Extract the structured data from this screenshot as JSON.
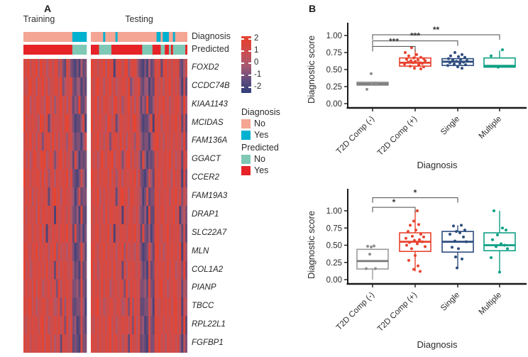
{
  "chart_data": [
    {
      "type": "heatmap",
      "panel_label": "A",
      "group_labels": [
        "Training",
        "Testing"
      ],
      "annotation_labels": [
        "Diagnosis",
        "Predicted"
      ],
      "genes": [
        "FOXD2",
        "CCDC74B",
        "KIAA1143",
        "MCIDAS",
        "FAM136A",
        "GGACT",
        "CCER2",
        "FAM19A3",
        "DRAP1",
        "SLC22A7",
        "MLN",
        "COL1A2",
        "PIANP",
        "TBCC",
        "RPL22L1",
        "FGFBP1"
      ],
      "colorbar": {
        "ticks": [
          "2",
          "1",
          "0",
          "-1",
          "-2"
        ],
        "high": "#e8432e",
        "mid": "#a85a72",
        "low": "#2e3d7a",
        "range": [
          2,
          -2
        ]
      },
      "ann_colors": {
        "diagnosis_no": "#f4a593",
        "diagnosis_yes": "#00b2cf",
        "predicted_no": "#7fc8b6",
        "predicted_yes": "#e62428"
      },
      "legend": {
        "diagnosis_title": "Diagnosis",
        "diagnosis_items": [
          {
            "label": "No",
            "key": "diagnosis_no"
          },
          {
            "label": "Yes",
            "key": "diagnosis_yes"
          }
        ],
        "predicted_title": "Predicted",
        "predicted_items": [
          {
            "label": "No",
            "key": "predicted_no"
          },
          {
            "label": "Yes",
            "key": "predicted_yes"
          }
        ]
      },
      "training": {
        "n_samples": 31,
        "diagnosis": [
          [
            "no",
            24
          ],
          [
            "yes",
            7
          ]
        ],
        "predicted": [
          [
            "yes",
            24
          ],
          [
            "no",
            7
          ]
        ],
        "rows": [
          "8796879597857868847328632131523",
          "7689785879685778869357783244132",
          "8795868877598684779685862439224",
          "9687877598682587778689763122481",
          "7879685873788696858774874233147",
          "8685797688957873689686752841323",
          "9786878869684785877879583213742",
          "7879586877872689785887764137233",
          "8687785968878771867876853241822",
          "7788687795817687868879672832413",
          "8876879687785879486775863123842",
          "9685787878696772858787684231723",
          "7878696885778687395878773342832",
          "8789685778867875683948772233741",
          "7687878689685778786839583412732",
          "8786877879688685772877682321833"
        ]
      },
      "testing": {
        "n_samples": 47,
        "diagnosis": [
          [
            "no",
            6
          ],
          [
            "yes",
            1
          ],
          [
            "no",
            5
          ],
          [
            "yes",
            1
          ],
          [
            "no",
            19
          ],
          [
            "yes",
            2
          ],
          [
            "no",
            1
          ],
          [
            "yes",
            3
          ],
          [
            "no",
            2
          ],
          [
            "yes",
            1
          ],
          [
            "no",
            6
          ]
        ],
        "predicted": [
          [
            "yes",
            4
          ],
          [
            "no",
            6
          ],
          [
            "yes",
            15
          ],
          [
            "no",
            5
          ],
          [
            "yes",
            4
          ],
          [
            "no",
            2
          ],
          [
            "yes",
            2
          ],
          [
            "no",
            1
          ],
          [
            "yes",
            1
          ],
          [
            "no",
            6
          ],
          [
            "yes",
            1
          ]
        ],
        "rows": [
          "97868795978178868947886321315238782796868783257",
          "86897858796857788693577832441328768587968684172",
          "87958688775986847796858624392248687968577886395",
          "96878775986825877786897631224818785878687968272",
          "78796858737886968587748742331478968587786877493",
          "86857976889578736896867528413238687787968577286",
          "97868788696847858778795832137428786887759686183",
          "78795868778726897858877641372338868778587968375",
          "86877859688787718678768532418228778868779581463",
          "77886877958176878688796728324138876879687785272",
          "88768796877858794867758631238428968578787869184",
          "96857878786967728587876842317238787869688577393",
          "78786968857786873958787733428328789685778867264",
          "87896857788678756839487722337418768787868968175",
          "76878786896857787868395834127328878687787968292",
          "87868778796886857728776823218338796858778684163"
        ]
      }
    },
    {
      "type": "box",
      "panel_label": "B",
      "ylabel": "Diagnostic score",
      "xlabel": "Diagnosis",
      "yticks": [
        "0.00",
        "0.25",
        "0.50",
        "0.75",
        "1.00"
      ],
      "ytick_values": [
        0,
        0.25,
        0.5,
        0.75,
        1.0
      ],
      "ylim": [
        0,
        1.15
      ],
      "categories": [
        "T2D Comp (-)",
        "T2D Comp (+)",
        "Single",
        "Multiple"
      ],
      "series": [
        {
          "name": "T2D Comp (-)",
          "color": "#999999",
          "fill": "#cccccc",
          "median_color": "#7a7a7a",
          "point_color": "#8f8f8f",
          "q1": 0.27,
          "median": 0.29,
          "q3": 0.315,
          "whisker_low": null,
          "whisker_high": null,
          "points": [
            [
              -2,
              0.44
            ],
            [
              5,
              0.3
            ],
            [
              -1,
              0.285
            ],
            [
              -8,
              0.21
            ]
          ]
        },
        {
          "name": "T2D Comp (+)",
          "color": "#e8432e",
          "fill": "#ffffff",
          "q1": 0.55,
          "median": 0.6,
          "q3": 0.67,
          "whisker_low": null,
          "whisker_high": 0.8,
          "points": [
            [
              -5,
              0.82
            ],
            [
              -14,
              0.75
            ],
            [
              2,
              0.72
            ],
            [
              -9,
              0.7
            ],
            [
              8,
              0.68
            ],
            [
              -2,
              0.67
            ],
            [
              12,
              0.66
            ],
            [
              -12,
              0.65
            ],
            [
              4,
              0.64
            ],
            [
              -6,
              0.63
            ],
            [
              14,
              0.63
            ],
            [
              0,
              0.62
            ],
            [
              -10,
              0.61
            ],
            [
              7,
              0.6
            ],
            [
              -3,
              0.6
            ],
            [
              10,
              0.59
            ],
            [
              -15,
              0.58
            ],
            [
              5,
              0.57
            ],
            [
              -7,
              0.55
            ],
            [
              12,
              0.54
            ],
            [
              -1,
              0.52
            ],
            [
              8,
              0.51
            ]
          ]
        },
        {
          "name": "Single",
          "color": "#2e4d7e",
          "fill": "#ffffff",
          "q1": 0.56,
          "median": 0.615,
          "q3": 0.66,
          "whisker_low": null,
          "whisker_high": null,
          "points": [
            [
              -4,
              0.75
            ],
            [
              6,
              0.72
            ],
            [
              -10,
              0.7
            ],
            [
              1,
              0.69
            ],
            [
              10,
              0.68
            ],
            [
              -13,
              0.66
            ],
            [
              4,
              0.65
            ],
            [
              -7,
              0.64
            ],
            [
              13,
              0.63
            ],
            [
              -2,
              0.62
            ],
            [
              8,
              0.61
            ],
            [
              -11,
              0.6
            ],
            [
              3,
              0.59
            ],
            [
              -5,
              0.58
            ],
            [
              11,
              0.57
            ],
            [
              -14,
              0.56
            ],
            [
              0,
              0.54
            ],
            [
              6,
              0.52
            ]
          ]
        },
        {
          "name": "Multiple",
          "color": "#0fa085",
          "fill": "#ffffff",
          "q1": 0.535,
          "median": 0.555,
          "q3": 0.67,
          "whisker_low": null,
          "whisker_high": 0.78,
          "points": [
            [
              4,
              0.79
            ],
            [
              -12,
              0.7
            ],
            [
              -2,
              0.535
            ]
          ]
        }
      ],
      "brackets": [
        {
          "from": 0,
          "to": 1,
          "label": "***",
          "y": 0.84
        },
        {
          "from": 0,
          "to": 2,
          "label": "***",
          "y": 0.92
        },
        {
          "from": 0,
          "to": 3,
          "label": "**",
          "y": 1.01
        }
      ]
    },
    {
      "type": "box",
      "ylabel": "Diagnostic score",
      "xlabel": "Diagnosis",
      "yticks": [
        "0.00",
        "0.25",
        "0.50",
        "0.75",
        "1.00"
      ],
      "ytick_values": [
        0,
        0.25,
        0.5,
        0.75,
        1.0
      ],
      "ylim": [
        0,
        1.3
      ],
      "categories": [
        "T2D Comp (-)",
        "T2D Comp (+)",
        "Single",
        "Multiple"
      ],
      "series": [
        {
          "name": "T2D Comp (-)",
          "color": "#999999",
          "fill": "#ffffff",
          "median_color": "#7a7a7a",
          "point_color": "#8f8f8f",
          "q1": 0.155,
          "median": 0.27,
          "q3": 0.44,
          "whisker_low": 0.0,
          "whisker_high": null,
          "points": [
            [
              -7,
              0.485
            ],
            [
              -2,
              0.475
            ],
            [
              2,
              0.49
            ],
            [
              -4,
              0.37
            ],
            [
              -9,
              0.16
            ],
            [
              4,
              0.16
            ]
          ]
        },
        {
          "name": "T2D Comp (+)",
          "color": "#e8432e",
          "fill": "#ffffff",
          "q1": 0.41,
          "median": 0.55,
          "q3": 0.68,
          "whisker_low": 0.12,
          "whisker_high": 1.0,
          "points": [
            [
              3,
              1.0
            ],
            [
              -2,
              0.85
            ],
            [
              5,
              0.8
            ],
            [
              -7,
              0.79
            ],
            [
              1,
              0.72
            ],
            [
              -10,
              0.7
            ],
            [
              8,
              0.66
            ],
            [
              -4,
              0.63
            ],
            [
              12,
              0.62
            ],
            [
              -13,
              0.6
            ],
            [
              6,
              0.58
            ],
            [
              -1,
              0.57
            ],
            [
              10,
              0.55
            ],
            [
              -8,
              0.54
            ],
            [
              3,
              0.52
            ],
            [
              -12,
              0.5
            ],
            [
              14,
              0.48
            ],
            [
              -5,
              0.45
            ],
            [
              0,
              0.35
            ],
            [
              -9,
              0.28
            ],
            [
              4,
              0.2
            ],
            [
              -2,
              0.15
            ],
            [
              7,
              0.12
            ]
          ]
        },
        {
          "name": "Single",
          "color": "#2e4d7e",
          "fill": "#ffffff",
          "q1": 0.4,
          "median": 0.55,
          "q3": 0.7,
          "whisker_low": 0.16,
          "whisker_high": 0.79,
          "points": [
            [
              5,
              0.79
            ],
            [
              -6,
              0.78
            ],
            [
              10,
              0.72
            ],
            [
              -2,
              0.7
            ],
            [
              3,
              0.68
            ],
            [
              -11,
              0.66
            ],
            [
              8,
              0.62
            ],
            [
              -4,
              0.56
            ],
            [
              12,
              0.55
            ],
            [
              -8,
              0.47
            ],
            [
              1,
              0.45
            ],
            [
              -3,
              0.33
            ],
            [
              6,
              0.3
            ],
            [
              -1,
              0.17
            ]
          ]
        },
        {
          "name": "Multiple",
          "color": "#0fa085",
          "fill": "#ffffff",
          "q1": 0.42,
          "median": 0.5,
          "q3": 0.68,
          "whisker_low": 0.1,
          "whisker_high": 1.0,
          "points": [
            [
              -8,
              1.0
            ],
            [
              4,
              0.75
            ],
            [
              9,
              0.72
            ],
            [
              -3,
              0.65
            ],
            [
              -10,
              0.58
            ],
            [
              2,
              0.52
            ],
            [
              7,
              0.5
            ],
            [
              -5,
              0.48
            ],
            [
              11,
              0.45
            ],
            [
              -12,
              0.32
            ],
            [
              0,
              0.11
            ]
          ]
        }
      ],
      "brackets": [
        {
          "from": 0,
          "to": 1,
          "label": "*",
          "y": 1.05
        },
        {
          "from": 0,
          "to": 2,
          "label": "*",
          "y": 1.19
        }
      ]
    }
  ]
}
